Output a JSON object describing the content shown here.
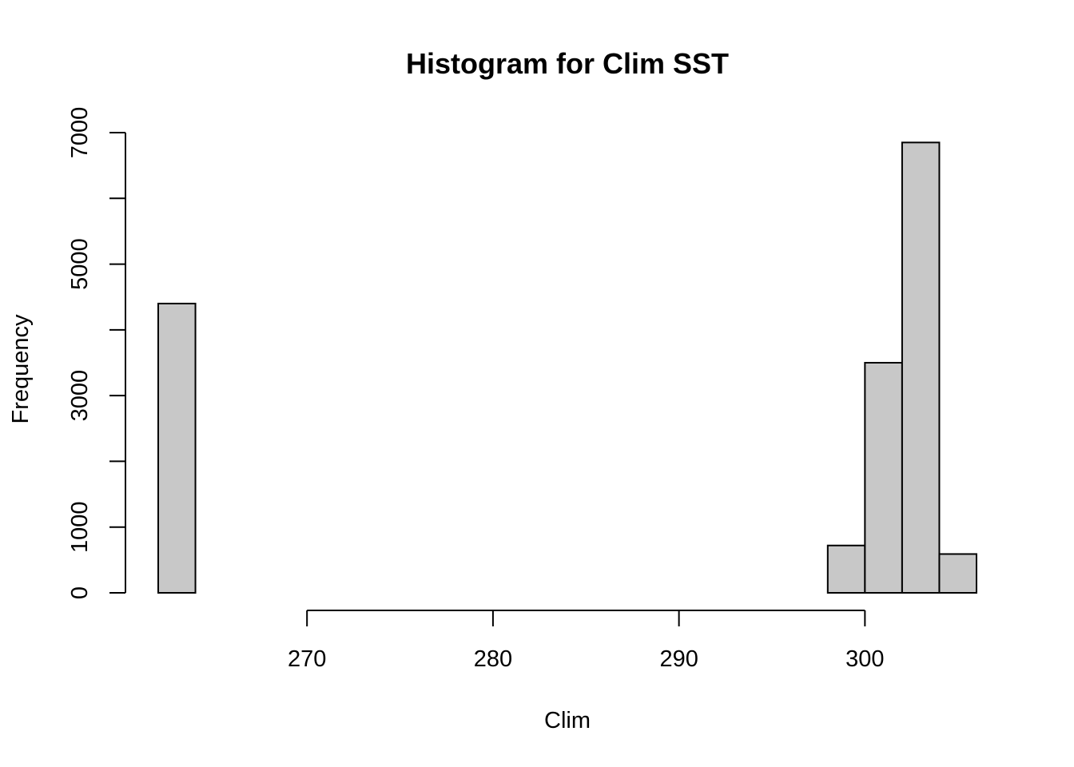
{
  "chart_data": {
    "type": "bar",
    "title": "Histogram for Clim SST",
    "xlabel": "Clim",
    "ylabel": "Frequency",
    "bin_edges": [
      262,
      264,
      266,
      268,
      270,
      272,
      274,
      276,
      278,
      280,
      282,
      284,
      286,
      288,
      290,
      292,
      294,
      296,
      298,
      300,
      302,
      304,
      306
    ],
    "values": [
      4400,
      0,
      0,
      0,
      0,
      0,
      0,
      0,
      0,
      0,
      0,
      0,
      0,
      0,
      0,
      0,
      0,
      0,
      720,
      3500,
      6850,
      590
    ],
    "xlim": [
      262,
      306
    ],
    "ylim": [
      0,
      7000
    ],
    "x_ticks": [
      270,
      280,
      290,
      300
    ],
    "y_ticks": [
      0,
      1000,
      2000,
      3000,
      4000,
      5000,
      6000,
      7000
    ],
    "y_tick_labels": [
      "0",
      "1000",
      "3000",
      "5000",
      "7000"
    ],
    "bar_fill": "#c8c8c8",
    "bar_stroke": "#000000",
    "grid": false
  }
}
